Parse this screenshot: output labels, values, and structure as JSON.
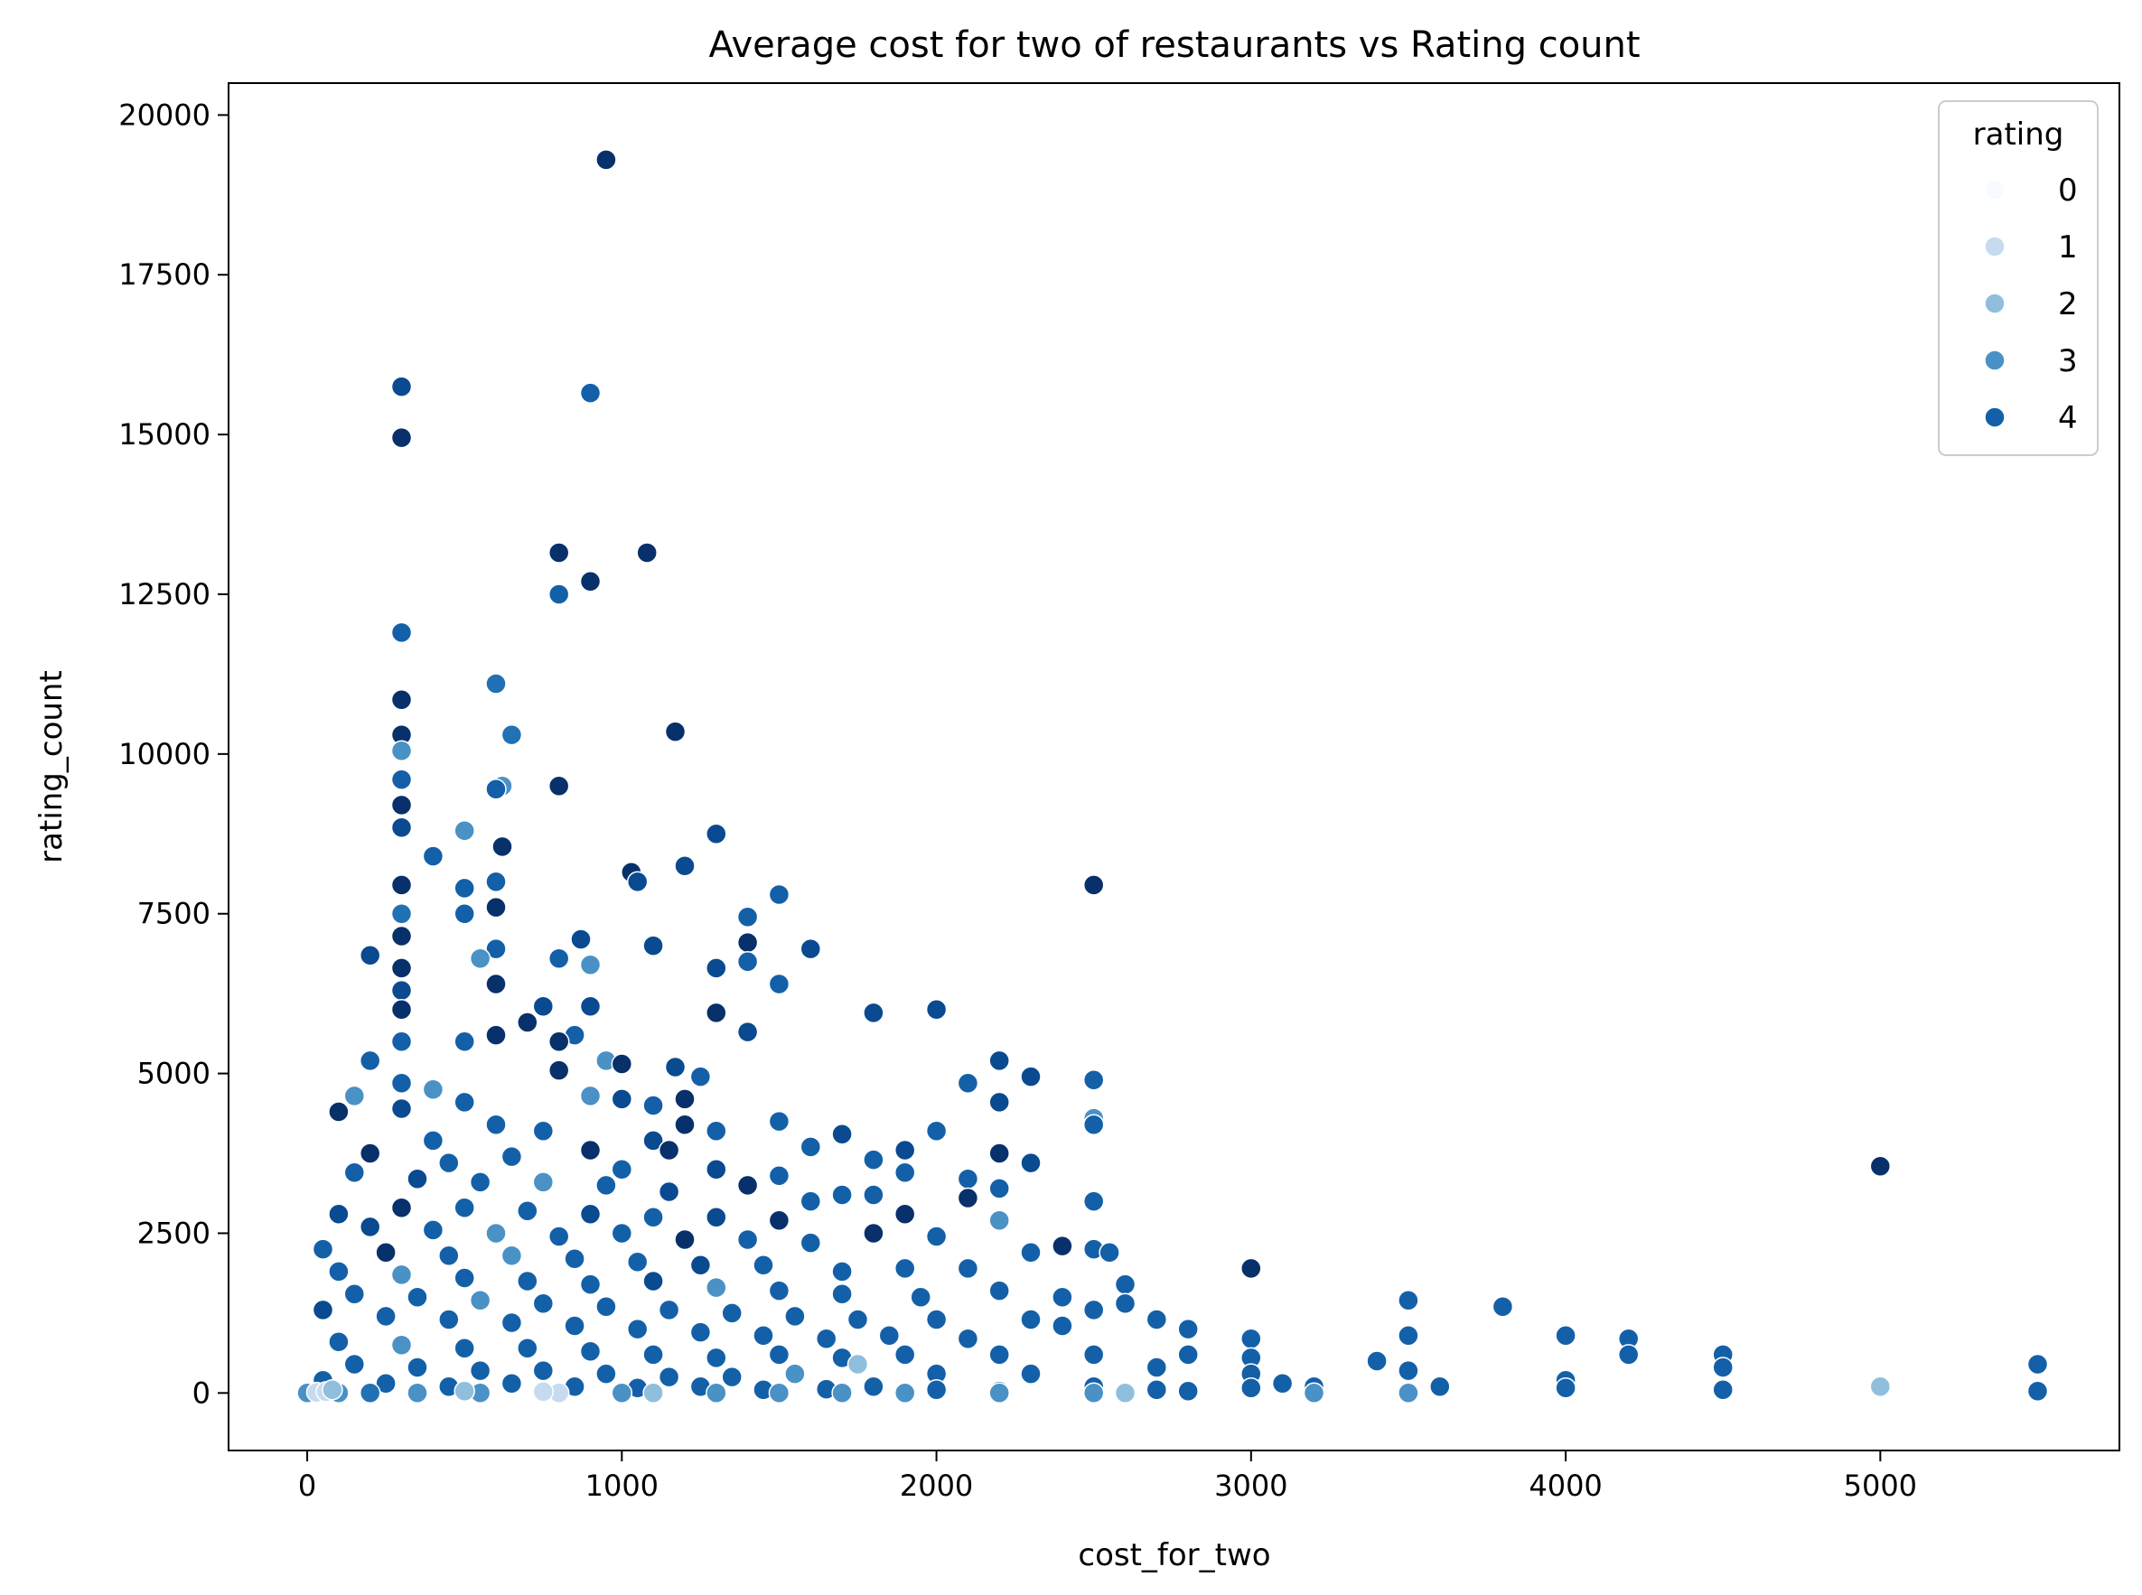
{
  "chart_data": {
    "type": "scatter",
    "title": "Average cost for two of restaurants vs Rating count",
    "xlabel": "cost_for_two",
    "ylabel": "rating_count",
    "xlim": [
      -250,
      5760
    ],
    "ylim": [
      -900,
      20500
    ],
    "xticks": [
      0,
      1000,
      2000,
      3000,
      4000,
      5000
    ],
    "yticks": [
      0,
      2500,
      5000,
      7500,
      10000,
      12500,
      15000,
      17500,
      20000
    ],
    "grid": false,
    "legend": {
      "title": "rating",
      "placement": "top-right",
      "entries": [
        {
          "label": "0",
          "color": "#f7fbff"
        },
        {
          "label": "1",
          "color": "#c6dbef"
        },
        {
          "label": "2",
          "color": "#8fbfdc"
        },
        {
          "label": "3",
          "color": "#4a91c6"
        },
        {
          "label": "4",
          "color": "#1460a8"
        }
      ]
    },
    "point_colors": [
      "#f7fbff",
      "#c6dbef",
      "#8fbfdc",
      "#4a91c6",
      "#2171b5",
      "#1460a8",
      "#0a4a90",
      "#08306b"
    ],
    "points": [
      [
        950,
        19300,
        7
      ],
      [
        300,
        15750,
        6
      ],
      [
        900,
        15650,
        5
      ],
      [
        300,
        14950,
        7
      ],
      [
        800,
        13150,
        7
      ],
      [
        1080,
        13150,
        7
      ],
      [
        900,
        12700,
        7
      ],
      [
        800,
        12500,
        5
      ],
      [
        300,
        11900,
        5
      ],
      [
        600,
        11100,
        4
      ],
      [
        300,
        10850,
        7
      ],
      [
        650,
        10300,
        4
      ],
      [
        300,
        10300,
        7
      ],
      [
        1170,
        10350,
        7
      ],
      [
        300,
        10050,
        3
      ],
      [
        620,
        9500,
        3
      ],
      [
        600,
        9450,
        5
      ],
      [
        800,
        9500,
        7
      ],
      [
        300,
        9600,
        5
      ],
      [
        300,
        9200,
        7
      ],
      [
        300,
        8850,
        6
      ],
      [
        500,
        8800,
        3
      ],
      [
        1300,
        8750,
        6
      ],
      [
        620,
        8550,
        7
      ],
      [
        400,
        8400,
        5
      ],
      [
        1030,
        8150,
        7
      ],
      [
        1050,
        8000,
        6
      ],
      [
        1200,
        8250,
        6
      ],
      [
        2500,
        7950,
        7
      ],
      [
        500,
        7900,
        5
      ],
      [
        600,
        8000,
        5
      ],
      [
        300,
        7950,
        7
      ],
      [
        300,
        7500,
        4
      ],
      [
        600,
        7600,
        7
      ],
      [
        500,
        7500,
        5
      ],
      [
        1400,
        7450,
        5
      ],
      [
        1500,
        7800,
        5
      ],
      [
        1100,
        7000,
        6
      ],
      [
        870,
        7100,
        6
      ],
      [
        300,
        7150,
        7
      ],
      [
        600,
        6950,
        5
      ],
      [
        1400,
        7050,
        7
      ],
      [
        1600,
        6950,
        6
      ],
      [
        200,
        6850,
        6
      ],
      [
        550,
        6800,
        3
      ],
      [
        800,
        6800,
        5
      ],
      [
        900,
        6700,
        3
      ],
      [
        1400,
        6750,
        5
      ],
      [
        1300,
        6650,
        6
      ],
      [
        1500,
        6400,
        5
      ],
      [
        300,
        6650,
        7
      ],
      [
        600,
        6400,
        7
      ],
      [
        300,
        6300,
        6
      ],
      [
        750,
        6050,
        6
      ],
      [
        900,
        6050,
        6
      ],
      [
        300,
        6000,
        7
      ],
      [
        1800,
        5950,
        6
      ],
      [
        2000,
        6000,
        6
      ],
      [
        1300,
        5950,
        7
      ],
      [
        600,
        5600,
        7
      ],
      [
        850,
        5600,
        5
      ],
      [
        800,
        5500,
        7
      ],
      [
        500,
        5500,
        5
      ],
      [
        700,
        5800,
        7
      ],
      [
        1400,
        5650,
        6
      ],
      [
        300,
        5500,
        5
      ],
      [
        950,
        5200,
        3
      ],
      [
        200,
        5200,
        5
      ],
      [
        1000,
        5150,
        7
      ],
      [
        2200,
        5200,
        6
      ],
      [
        2100,
        4850,
        5
      ],
      [
        2300,
        4950,
        6
      ],
      [
        2500,
        4900,
        5
      ],
      [
        1170,
        5100,
        6
      ],
      [
        1250,
        4950,
        5
      ],
      [
        800,
        5050,
        7
      ],
      [
        400,
        4750,
        3
      ],
      [
        150,
        4650,
        3
      ],
      [
        100,
        4400,
        7
      ],
      [
        300,
        4850,
        5
      ],
      [
        500,
        4550,
        5
      ],
      [
        900,
        4650,
        3
      ],
      [
        1000,
        4600,
        6
      ],
      [
        1100,
        4500,
        5
      ],
      [
        1200,
        4600,
        7
      ],
      [
        1500,
        4250,
        5
      ],
      [
        1700,
        4050,
        6
      ],
      [
        2500,
        4300,
        3
      ],
      [
        2500,
        4200,
        5
      ],
      [
        2200,
        4550,
        6
      ],
      [
        1200,
        4200,
        7
      ],
      [
        300,
        4450,
        6
      ],
      [
        600,
        4200,
        5
      ],
      [
        750,
        4100,
        5
      ],
      [
        400,
        3950,
        5
      ],
      [
        1300,
        4100,
        5
      ],
      [
        1600,
        3850,
        5
      ],
      [
        1800,
        3650,
        5
      ],
      [
        1900,
        3800,
        6
      ],
      [
        2000,
        4100,
        5
      ],
      [
        2200,
        3750,
        7
      ],
      [
        2300,
        3600,
        6
      ],
      [
        1100,
        3950,
        6
      ],
      [
        1150,
        3800,
        7
      ],
      [
        900,
        3800,
        7
      ],
      [
        200,
        3750,
        7
      ],
      [
        650,
        3700,
        5
      ],
      [
        450,
        3600,
        5
      ],
      [
        1000,
        3500,
        5
      ],
      [
        1300,
        3500,
        6
      ],
      [
        1500,
        3400,
        5
      ],
      [
        1700,
        3100,
        5
      ],
      [
        1900,
        3450,
        5
      ],
      [
        2100,
        3350,
        5
      ],
      [
        2200,
        3200,
        5
      ],
      [
        5000,
        3550,
        7
      ],
      [
        150,
        3450,
        5
      ],
      [
        350,
        3350,
        6
      ],
      [
        550,
        3300,
        5
      ],
      [
        750,
        3300,
        3
      ],
      [
        950,
        3250,
        5
      ],
      [
        1150,
        3150,
        6
      ],
      [
        1400,
        3250,
        7
      ],
      [
        1600,
        3000,
        5
      ],
      [
        1800,
        3100,
        5
      ],
      [
        2100,
        3050,
        7
      ],
      [
        2500,
        3000,
        5
      ],
      [
        100,
        2800,
        6
      ],
      [
        300,
        2900,
        7
      ],
      [
        500,
        2900,
        5
      ],
      [
        700,
        2850,
        5
      ],
      [
        900,
        2800,
        6
      ],
      [
        1100,
        2750,
        5
      ],
      [
        1300,
        2750,
        6
      ],
      [
        1500,
        2700,
        7
      ],
      [
        1900,
        2800,
        7
      ],
      [
        2200,
        2700,
        3
      ],
      [
        200,
        2600,
        6
      ],
      [
        400,
        2550,
        5
      ],
      [
        600,
        2500,
        3
      ],
      [
        800,
        2450,
        5
      ],
      [
        1000,
        2500,
        5
      ],
      [
        1200,
        2400,
        7
      ],
      [
        1400,
        2400,
        5
      ],
      [
        1600,
        2350,
        5
      ],
      [
        1800,
        2500,
        7
      ],
      [
        2000,
        2450,
        5
      ],
      [
        2400,
        2300,
        7
      ],
      [
        2500,
        2250,
        5
      ],
      [
        50,
        2250,
        5
      ],
      [
        250,
        2200,
        7
      ],
      [
        450,
        2150,
        5
      ],
      [
        650,
        2150,
        3
      ],
      [
        850,
        2100,
        5
      ],
      [
        1050,
        2050,
        5
      ],
      [
        1250,
        2000,
        6
      ],
      [
        1450,
        2000,
        5
      ],
      [
        1700,
        1900,
        5
      ],
      [
        1900,
        1950,
        5
      ],
      [
        2100,
        1950,
        5
      ],
      [
        2300,
        2200,
        5
      ],
      [
        2550,
        2200,
        5
      ],
      [
        100,
        1900,
        5
      ],
      [
        300,
        1850,
        3
      ],
      [
        500,
        1800,
        5
      ],
      [
        700,
        1750,
        5
      ],
      [
        900,
        1700,
        5
      ],
      [
        1100,
        1750,
        6
      ],
      [
        1300,
        1650,
        3
      ],
      [
        1500,
        1600,
        5
      ],
      [
        1700,
        1550,
        5
      ],
      [
        1950,
        1500,
        5
      ],
      [
        2200,
        1600,
        5
      ],
      [
        2400,
        1500,
        5
      ],
      [
        2600,
        1700,
        5
      ],
      [
        3000,
        1950,
        7
      ],
      [
        150,
        1550,
        5
      ],
      [
        350,
        1500,
        5
      ],
      [
        550,
        1450,
        3
      ],
      [
        750,
        1400,
        5
      ],
      [
        950,
        1350,
        5
      ],
      [
        1150,
        1300,
        5
      ],
      [
        1350,
        1250,
        5
      ],
      [
        1550,
        1200,
        5
      ],
      [
        1750,
        1150,
        5
      ],
      [
        2000,
        1150,
        5
      ],
      [
        2300,
        1150,
        5
      ],
      [
        2500,
        1300,
        5
      ],
      [
        2600,
        1400,
        5
      ],
      [
        3500,
        1450,
        5
      ],
      [
        3800,
        1350,
        5
      ],
      [
        50,
        1300,
        6
      ],
      [
        250,
        1200,
        5
      ],
      [
        450,
        1150,
        5
      ],
      [
        650,
        1100,
        5
      ],
      [
        850,
        1050,
        5
      ],
      [
        1050,
        1000,
        5
      ],
      [
        1250,
        950,
        5
      ],
      [
        1450,
        900,
        5
      ],
      [
        1650,
        850,
        5
      ],
      [
        1850,
        900,
        5
      ],
      [
        2100,
        850,
        5
      ],
      [
        2400,
        1050,
        5
      ],
      [
        2700,
        1150,
        5
      ],
      [
        2800,
        1000,
        5
      ],
      [
        3000,
        850,
        5
      ],
      [
        3500,
        900,
        5
      ],
      [
        4000,
        900,
        5
      ],
      [
        4200,
        850,
        5
      ],
      [
        100,
        800,
        5
      ],
      [
        300,
        750,
        3
      ],
      [
        500,
        700,
        5
      ],
      [
        700,
        700,
        5
      ],
      [
        900,
        650,
        5
      ],
      [
        1100,
        600,
        5
      ],
      [
        1300,
        550,
        5
      ],
      [
        1500,
        600,
        5
      ],
      [
        1700,
        550,
        5
      ],
      [
        1900,
        600,
        5
      ],
      [
        2200,
        600,
        5
      ],
      [
        2500,
        600,
        5
      ],
      [
        2800,
        600,
        5
      ],
      [
        3000,
        550,
        5
      ],
      [
        3400,
        500,
        5
      ],
      [
        4200,
        600,
        5
      ],
      [
        4500,
        600,
        5
      ],
      [
        5500,
        450,
        5
      ],
      [
        150,
        450,
        5
      ],
      [
        350,
        400,
        5
      ],
      [
        550,
        350,
        5
      ],
      [
        750,
        350,
        5
      ],
      [
        950,
        300,
        5
      ],
      [
        1150,
        250,
        5
      ],
      [
        1350,
        250,
        5
      ],
      [
        1550,
        300,
        3
      ],
      [
        1750,
        450,
        2
      ],
      [
        2000,
        300,
        5
      ],
      [
        2300,
        300,
        5
      ],
      [
        2700,
        400,
        5
      ],
      [
        3000,
        300,
        5
      ],
      [
        3500,
        350,
        5
      ],
      [
        4000,
        200,
        5
      ],
      [
        4500,
        400,
        5
      ],
      [
        50,
        200,
        5
      ],
      [
        250,
        150,
        5
      ],
      [
        450,
        100,
        5
      ],
      [
        650,
        150,
        5
      ],
      [
        850,
        100,
        5
      ],
      [
        1050,
        80,
        5
      ],
      [
        1250,
        100,
        5
      ],
      [
        1450,
        50,
        5
      ],
      [
        1650,
        60,
        5
      ],
      [
        1800,
        100,
        5
      ],
      [
        2000,
        50,
        5
      ],
      [
        2200,
        30,
        5
      ],
      [
        2500,
        100,
        5
      ],
      [
        2700,
        50,
        5
      ],
      [
        2800,
        30,
        5
      ],
      [
        3000,
        80,
        5
      ],
      [
        3100,
        150,
        5
      ],
      [
        3200,
        100,
        5
      ],
      [
        3600,
        100,
        5
      ],
      [
        4000,
        80,
        5
      ],
      [
        4500,
        50,
        5
      ],
      [
        5000,
        100,
        2
      ],
      [
        5500,
        30,
        5
      ],
      [
        0,
        0,
        3
      ],
      [
        30,
        10,
        1
      ],
      [
        60,
        20,
        1
      ],
      [
        100,
        0,
        3
      ],
      [
        200,
        0,
        4
      ],
      [
        350,
        0,
        3
      ],
      [
        550,
        0,
        3
      ],
      [
        800,
        0,
        1
      ],
      [
        1000,
        0,
        3
      ],
      [
        1100,
        0,
        2
      ],
      [
        1300,
        0,
        3
      ],
      [
        1500,
        0,
        3
      ],
      [
        1700,
        0,
        3
      ],
      [
        1900,
        0,
        3
      ],
      [
        2200,
        0,
        3
      ],
      [
        2500,
        0,
        3
      ],
      [
        2600,
        0,
        2
      ],
      [
        3200,
        0,
        3
      ],
      [
        3500,
        0,
        3
      ],
      [
        80,
        50,
        2
      ],
      [
        500,
        30,
        2
      ],
      [
        750,
        20,
        1
      ]
    ]
  }
}
